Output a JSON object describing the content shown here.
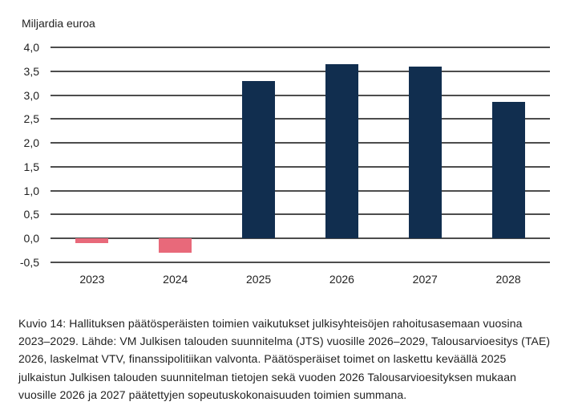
{
  "page": {
    "background_color": "#ffffff",
    "text_color": "#1f1f1f"
  },
  "chart_data": {
    "type": "bar",
    "title": "",
    "ylabel": "Miljardia euroa",
    "xlabel": "",
    "categories": [
      "2023",
      "2024",
      "2025",
      "2026",
      "2027",
      "2028"
    ],
    "values": [
      -0.1,
      -0.3,
      3.3,
      3.65,
      3.6,
      2.85
    ],
    "ylim": [
      -0.5,
      4.0
    ],
    "ytick_step": 0.5,
    "yticks": [
      4.0,
      3.5,
      3.0,
      2.5,
      2.0,
      1.5,
      1.0,
      0.5,
      0.0,
      -0.5
    ],
    "ytick_labels": [
      "4,0",
      "3,5",
      "3,0",
      "2,5",
      "2,0",
      "1,5",
      "1,0",
      "0,5",
      "0,0",
      "-0,5"
    ],
    "grid": true,
    "legend": "none",
    "colors": {
      "positive": "#112E4F",
      "negative": "#E8697A",
      "gridline": "#4d4d4d",
      "text": "#1f1f1f"
    }
  },
  "caption": {
    "text": "Kuvio 14: Hallituksen päätösperäisten toimien vaikutukset julkisyhteisöjen rahoitusasemaan vuosina 2023–2029. Lähde: VM Julkisen talouden suunnitelma (JTS) vuosille 2026–2029, Talousarvioesitys (TAE) 2026, laskelmat VTV, finanssipolitiikan valvonta. Päätösperäiset toimet on laskettu keväällä 2025 julkaistun Julkisen talouden suunnitelman tietojen sekä vuoden 2026 Talousarvioesityksen mukaan vuosille 2026 ja 2027 päätettyjen sopeutuskokonaisuuden toimien summana."
  }
}
